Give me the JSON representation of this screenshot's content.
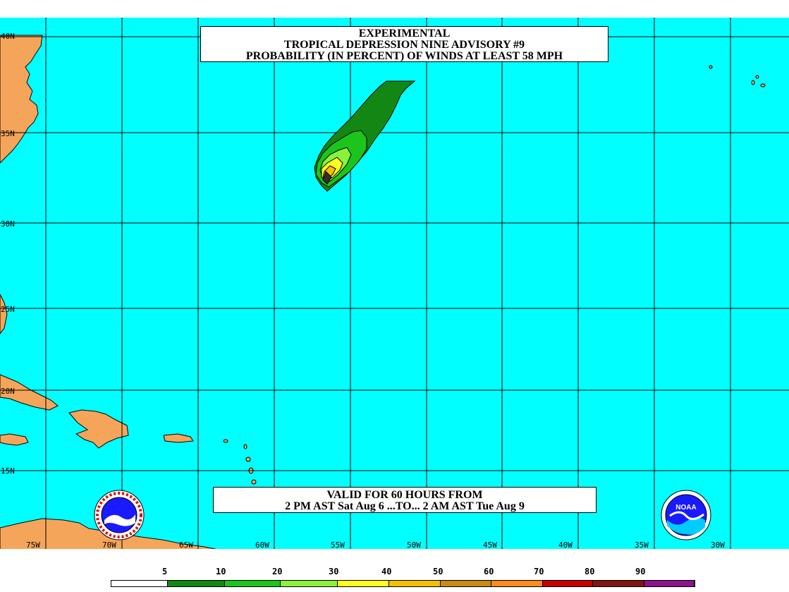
{
  "title": {
    "line1": "EXPERIMENTAL",
    "line2": "TROPICAL DEPRESSION NINE ADVISORY #9",
    "line3": "PROBABILITY (IN PERCENT) OF WINDS AT LEAST 58 MPH"
  },
  "valid": {
    "line1": "VALID FOR 60 HOURS FROM",
    "line2": "2 PM AST Sat Aug 6 ...TO... 2 AM AST Tue Aug 9"
  },
  "latitudes": [
    "40N",
    "35N",
    "30N",
    "25N",
    "20N",
    "15N"
  ],
  "longitudes": [
    "75W",
    "70W",
    "65W",
    "60W",
    "55W",
    "50W",
    "45W",
    "40W",
    "35W",
    "30W"
  ],
  "legend": {
    "labels": [
      "5",
      "10",
      "20",
      "30",
      "40",
      "50",
      "60",
      "70",
      "80",
      "90"
    ],
    "colors": [
      "#ffffff",
      "#138713",
      "#1cc51c",
      "#8bf23b",
      "#ffff20",
      "#f5c000",
      "#c88c14",
      "#ff8c1e",
      "#c80000",
      "#821414",
      "#8c148c"
    ]
  },
  "colors": {
    "ocean": "#00ffff",
    "land": "#f5a55a",
    "grid": "#000000"
  },
  "logos": {
    "left": "nws-logo",
    "right": "noaa-logo",
    "noaa_text": "NOAA"
  }
}
